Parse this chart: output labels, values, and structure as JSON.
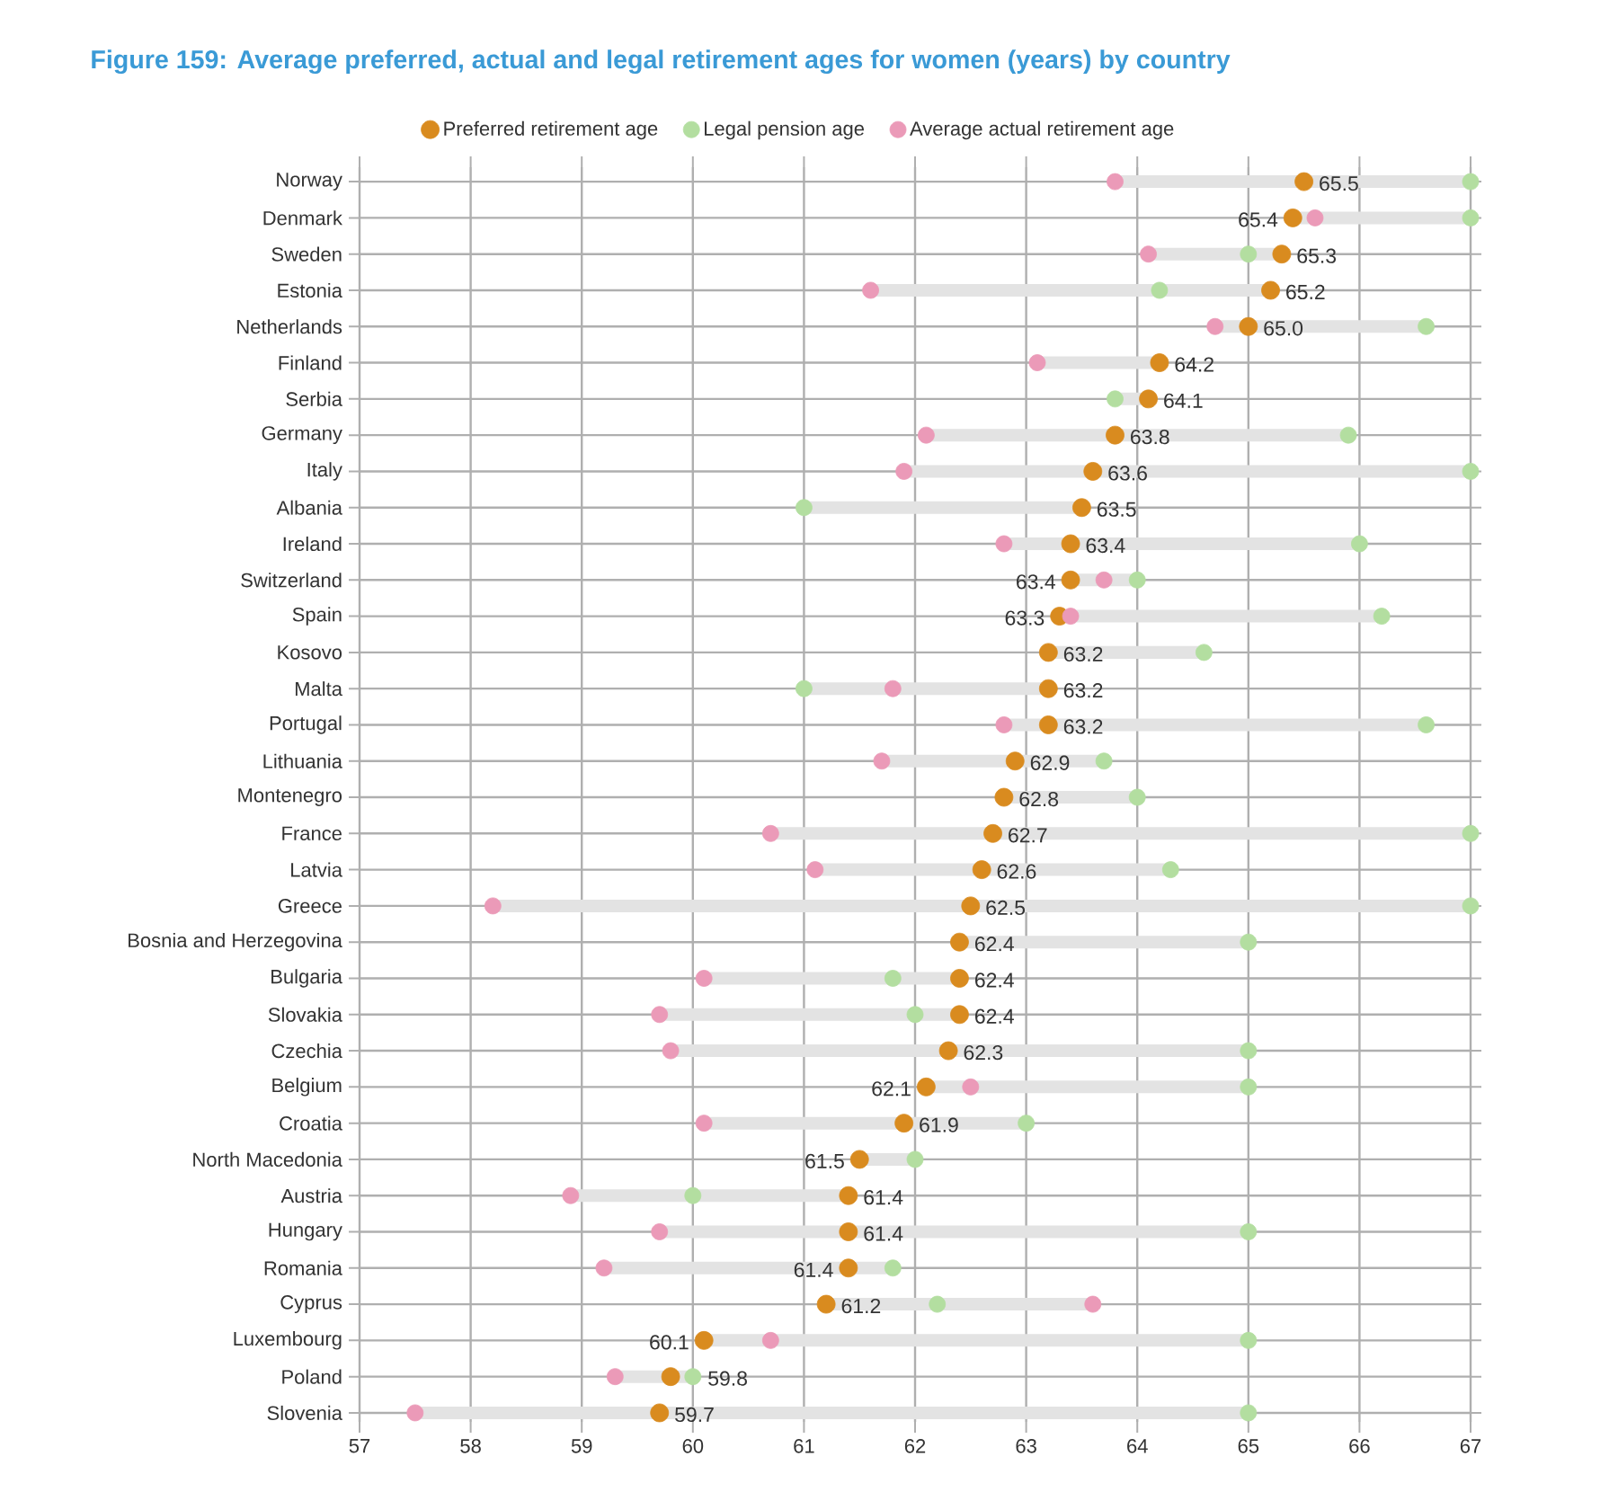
{
  "chart_data": {
    "type": "scatter",
    "orientation": "horizontal",
    "title": "Figure 159: Average preferred, actual and legal retirement ages for women (years) by country",
    "categories": [
      "Norway",
      "Denmark",
      "Sweden",
      "Estonia",
      "Netherlands",
      "Finland",
      "Serbia",
      "Germany",
      "Italy",
      "Albania",
      "Ireland",
      "Switzerland",
      "Spain",
      "Kosovo",
      "Malta",
      "Portugal",
      "Lithuania",
      "Montenegro",
      "France",
      "Latvia",
      "Greece",
      "Bosnia and Herzegovina",
      "Bulgaria",
      "Slovakia",
      "Czechia",
      "Belgium",
      "Croatia",
      "North Macedonia",
      "Austria",
      "Hungary",
      "Romania",
      "Cyprus",
      "Luxembourg",
      "Poland",
      "Slovenia"
    ],
    "series": [
      {
        "name": "Preferred retirement age",
        "color": "#d98b1f",
        "values": [
          65.5,
          65.4,
          65.3,
          65.2,
          65.0,
          64.2,
          64.1,
          63.8,
          63.6,
          63.5,
          63.4,
          63.4,
          63.3,
          63.2,
          63.2,
          63.2,
          62.9,
          62.8,
          62.7,
          62.6,
          62.5,
          62.4,
          62.4,
          62.4,
          62.3,
          62.1,
          61.9,
          61.5,
          61.4,
          61.4,
          61.4,
          61.2,
          60.1,
          59.8,
          59.7
        ],
        "value_labels": [
          "65.5",
          "65.4",
          "65.3",
          "65.2",
          "65.0",
          "64.2",
          "64.1",
          "63.8",
          "63.6",
          "63.5",
          "63.4",
          "63.4",
          "63.3",
          "63.2",
          "63.2",
          "63.2",
          "62.9",
          "62.8",
          "62.7",
          "62.6",
          "62.5",
          "62.4",
          "62.4",
          "62.4",
          "62.3",
          "62.1",
          "61.9",
          "61.5",
          "61.4",
          "61.4",
          "61.4",
          "61.2",
          "60.1",
          "59.8",
          "59.7"
        ]
      },
      {
        "name": "Legal pension age",
        "color": "#b3dea0",
        "values": [
          67,
          67,
          65.0,
          64.2,
          66.6,
          null,
          63.8,
          65.9,
          67,
          61.0,
          66.0,
          64.0,
          66.2,
          64.6,
          61.0,
          66.6,
          63.7,
          64.0,
          67,
          64.3,
          67,
          65.0,
          61.8,
          62.0,
          65.0,
          65.0,
          63.0,
          62.0,
          60.0,
          65.0,
          61.8,
          62.2,
          65.0,
          60.0,
          65.0
        ]
      },
      {
        "name": "Average actual retirement age",
        "color": "#eb9ab8",
        "values": [
          63.8,
          65.6,
          64.1,
          61.6,
          64.7,
          63.1,
          null,
          62.1,
          61.9,
          null,
          62.8,
          63.7,
          63.4,
          null,
          61.8,
          62.8,
          61.7,
          null,
          60.7,
          61.1,
          58.2,
          null,
          60.1,
          59.7,
          59.8,
          62.5,
          60.1,
          null,
          58.9,
          59.7,
          59.2,
          63.6,
          60.7,
          59.3,
          57.5
        ]
      }
    ],
    "xlim": [
      57,
      67
    ],
    "xticks": [
      57,
      58,
      59,
      60,
      61,
      62,
      63,
      64,
      65,
      66,
      67
    ],
    "grid": true,
    "legend": "top",
    "marker": "circle"
  }
}
